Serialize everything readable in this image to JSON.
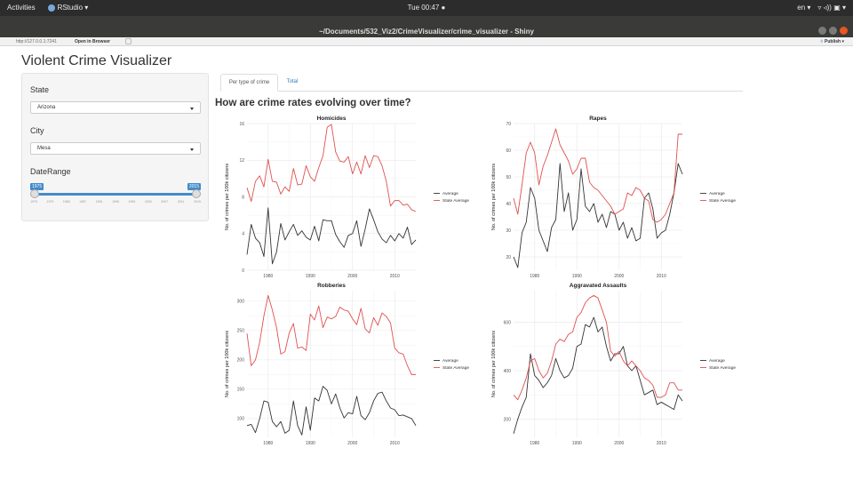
{
  "desktop": {
    "activities": "Activities",
    "app_menu": "RStudio ▾",
    "clock": "Tue 00:47 ●",
    "lang": "en ▾",
    "tray_icons": "▿ ◃)) ▣ ▾"
  },
  "window": {
    "title": "~/Documents/532_Viz2/CrimeVisualizer/crime_visualizer - Shiny"
  },
  "viewer": {
    "url": "http://127.0.0.1:7241",
    "open_in_browser": "Open in Browser",
    "publish": "Publish ▾"
  },
  "app": {
    "title": "Violent Crime Visualizer",
    "state_label": "State",
    "state_value": "Arizona",
    "city_label": "City",
    "city_value": "Mesa",
    "daterange_label": "DateRange",
    "slider": {
      "min_label": "1975",
      "max_label": "2015",
      "ticks": [
        "1975",
        "1979",
        "1983",
        "1987",
        "1991",
        "1995",
        "1999",
        "2003",
        "2007",
        "2011",
        "2015"
      ]
    },
    "tabs": [
      "Per type of crime",
      "Total"
    ],
    "question": "How are crime rates evolving over time?"
  },
  "chart_data": [
    {
      "type": "line",
      "title": "Homicides",
      "ylabel": "No. of crimes per 100k citizens",
      "xlabel": "",
      "xlim": [
        1975,
        2015
      ],
      "ylim": [
        0,
        16
      ],
      "xticks": [
        1980,
        1990,
        2000,
        2010
      ],
      "yticks": [
        0,
        4,
        8,
        12,
        16
      ],
      "colors": {
        "Average": "#333333",
        "State Average": "#e05050"
      },
      "legend_position": "right",
      "x": [
        1975,
        1976,
        1977,
        1978,
        1979,
        1980,
        1981,
        1982,
        1983,
        1984,
        1985,
        1986,
        1987,
        1988,
        1989,
        1990,
        1991,
        1992,
        1993,
        1994,
        1995,
        1996,
        1997,
        1998,
        1999,
        2000,
        2001,
        2002,
        2003,
        2004,
        2005,
        2006,
        2007,
        2008,
        2009,
        2010,
        2011,
        2012,
        2013,
        2014,
        2015
      ],
      "series": [
        {
          "name": "Average",
          "values": [
            1.7,
            5.0,
            3.5,
            3.0,
            1.5,
            6.8,
            0.7,
            2.0,
            5.1,
            3.3,
            4.2,
            5.0,
            3.8,
            4.3,
            3.6,
            3.3,
            4.8,
            3.2,
            5.5,
            5.4,
            5.4,
            3.9,
            3.1,
            2.5,
            3.8,
            4.0,
            5.4,
            2.6,
            4.5,
            6.7,
            5.5,
            4.2,
            3.4,
            3.0,
            3.8,
            3.2,
            4.0,
            3.5,
            4.7,
            2.8,
            3.3
          ]
        },
        {
          "name": "State Average",
          "values": [
            9.0,
            7.5,
            9.7,
            10.3,
            9.1,
            12.1,
            9.7,
            9.6,
            8.3,
            9.1,
            8.6,
            11.1,
            9.3,
            9.4,
            11.4,
            10.2,
            9.7,
            11.2,
            12.5,
            15.6,
            15.9,
            12.9,
            11.9,
            11.8,
            12.4,
            10.5,
            11.8,
            10.5,
            12.5,
            11.2,
            12.5,
            12.4,
            11.4,
            9.7,
            7.0,
            7.6,
            7.6,
            7.1,
            7.2,
            6.6,
            6.4
          ]
        }
      ]
    },
    {
      "type": "line",
      "title": "Rapes",
      "ylabel": "No. of crimes per 100k citizens",
      "xlabel": "",
      "xlim": [
        1975,
        2015
      ],
      "ylim": [
        15,
        70
      ],
      "xticks": [
        1980,
        1990,
        2000,
        2010
      ],
      "yticks": [
        20,
        30,
        40,
        50,
        60,
        70
      ],
      "colors": {
        "Average": "#333333",
        "State Average": "#e05050"
      },
      "legend_position": "right",
      "x": [
        1975,
        1976,
        1977,
        1978,
        1979,
        1980,
        1981,
        1982,
        1983,
        1984,
        1985,
        1986,
        1987,
        1988,
        1989,
        1990,
        1991,
        1992,
        1993,
        1994,
        1995,
        1996,
        1997,
        1998,
        1999,
        2000,
        2001,
        2002,
        2003,
        2004,
        2005,
        2006,
        2007,
        2008,
        2009,
        2010,
        2011,
        2012,
        2013,
        2014,
        2015
      ],
      "series": [
        {
          "name": "Average",
          "values": [
            20,
            16,
            29,
            33,
            46,
            42,
            30,
            26,
            22,
            31,
            34,
            55,
            37,
            44,
            30,
            34,
            53,
            39,
            37,
            40,
            33,
            36,
            31,
            37,
            36,
            30,
            33,
            27,
            31,
            26,
            27,
            42,
            44,
            38,
            27,
            29,
            30,
            36,
            44,
            55,
            51
          ]
        },
        {
          "name": "State Average",
          "values": [
            42,
            36,
            47,
            59,
            63,
            59,
            47,
            54,
            58,
            63,
            68,
            62,
            59,
            56,
            51,
            53,
            57,
            57,
            48,
            46,
            45,
            43,
            41,
            39,
            36,
            37,
            38,
            44,
            43,
            46,
            45,
            42,
            41,
            34,
            33,
            34,
            36,
            40,
            44,
            66,
            66
          ]
        }
      ]
    },
    {
      "type": "line",
      "title": "Robberies",
      "ylabel": "No. of crimes per 100k citizens",
      "xlabel": "",
      "xlim": [
        1975,
        2015
      ],
      "ylim": [
        68,
        318
      ],
      "xticks": [
        1980,
        1990,
        2000,
        2010
      ],
      "yticks": [
        100,
        150,
        200,
        250,
        300
      ],
      "colors": {
        "Average": "#333333",
        "State Average": "#e05050"
      },
      "legend_position": "right",
      "x": [
        1975,
        1976,
        1977,
        1978,
        1979,
        1980,
        1981,
        1982,
        1983,
        1984,
        1985,
        1986,
        1987,
        1988,
        1989,
        1990,
        1991,
        1992,
        1993,
        1994,
        1995,
        1996,
        1997,
        1998,
        1999,
        2000,
        2001,
        2002,
        2003,
        2004,
        2005,
        2006,
        2007,
        2008,
        2009,
        2010,
        2011,
        2012,
        2013,
        2014,
        2015
      ],
      "series": [
        {
          "name": "Average",
          "values": [
            88,
            90,
            76,
            100,
            130,
            128,
            95,
            86,
            95,
            75,
            80,
            130,
            88,
            72,
            120,
            80,
            135,
            130,
            155,
            148,
            125,
            142,
            118,
            101,
            110,
            108,
            138,
            105,
            98,
            110,
            130,
            143,
            145,
            130,
            118,
            115,
            105,
            106,
            103,
            100,
            88
          ]
        },
        {
          "name": "State Average",
          "values": [
            245,
            190,
            200,
            230,
            275,
            310,
            285,
            255,
            210,
            214,
            246,
            262,
            220,
            222,
            216,
            278,
            268,
            292,
            255,
            273,
            270,
            274,
            290,
            285,
            283,
            270,
            260,
            288,
            253,
            246,
            272,
            259,
            280,
            274,
            263,
            220,
            212,
            210,
            190,
            175,
            175
          ]
        }
      ]
    },
    {
      "type": "line",
      "title": "Aggravated Assaults",
      "ylabel": "No. of crimes per 100k citizens",
      "xlabel": "",
      "xlim": [
        1975,
        2015
      ],
      "ylim": [
        125,
        730
      ],
      "xticks": [
        1980,
        1990,
        2000,
        2010
      ],
      "yticks": [
        200,
        400,
        600
      ],
      "colors": {
        "Average": "#333333",
        "State Average": "#e05050"
      },
      "legend_position": "right",
      "x": [
        1975,
        1976,
        1977,
        1978,
        1979,
        1980,
        1981,
        1982,
        1983,
        1984,
        1985,
        1986,
        1987,
        1988,
        1989,
        1990,
        1991,
        1992,
        1993,
        1994,
        1995,
        1996,
        1997,
        1998,
        1999,
        2000,
        2001,
        2002,
        2003,
        2004,
        2005,
        2006,
        2007,
        2008,
        2009,
        2010,
        2011,
        2012,
        2013,
        2014,
        2015
      ],
      "series": [
        {
          "name": "Average",
          "values": [
            140,
            200,
            250,
            290,
            470,
            380,
            360,
            330,
            350,
            380,
            450,
            400,
            370,
            380,
            410,
            500,
            510,
            590,
            580,
            620,
            560,
            580,
            500,
            440,
            470,
            470,
            500,
            420,
            400,
            420,
            360,
            300,
            310,
            320,
            260,
            270,
            260,
            250,
            240,
            300,
            275
          ]
        },
        {
          "name": "State Average",
          "values": [
            300,
            280,
            320,
            370,
            440,
            450,
            400,
            370,
            390,
            440,
            510,
            530,
            520,
            550,
            560,
            620,
            640,
            680,
            700,
            710,
            700,
            650,
            600,
            480,
            460,
            480,
            440,
            420,
            440,
            420,
            400,
            370,
            360,
            340,
            290,
            290,
            300,
            350,
            350,
            320,
            320
          ]
        }
      ]
    }
  ]
}
